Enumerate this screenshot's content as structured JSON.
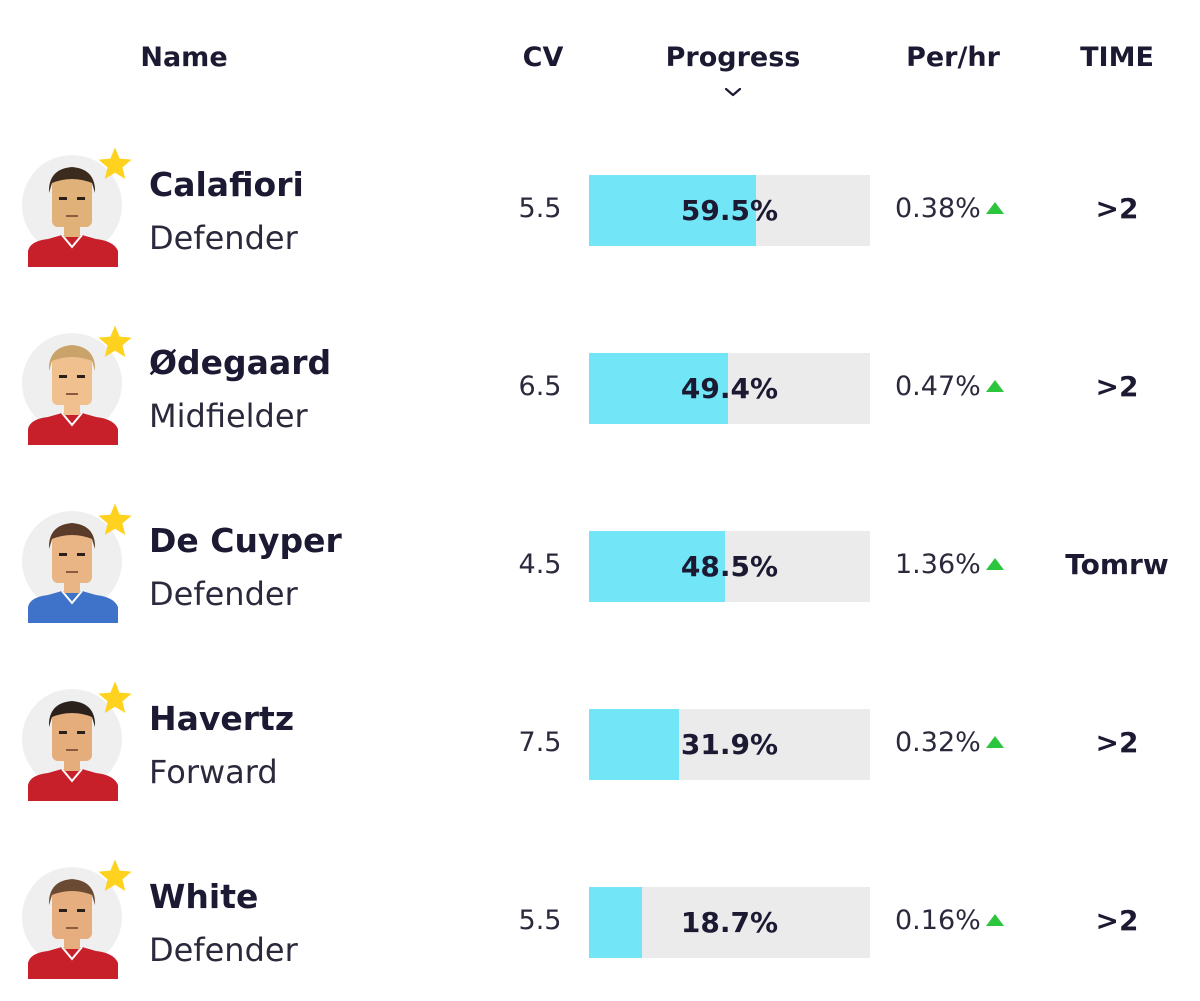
{
  "header": {
    "name": "Name",
    "cv": "CV",
    "progress": "Progress",
    "per_hr": "Per/hr",
    "time": "TIME"
  },
  "colors": {
    "progress_fill": "#72e6f6",
    "progress_track": "#ebebeb",
    "up_arrow": "#2cc63e",
    "star": "#ffd21f",
    "shirt_red": "#c8202a",
    "shirt_blue": "#3f72c9"
  },
  "players": [
    {
      "name": "Calafiori",
      "position": "Defender",
      "cv": "5.5",
      "progress": "59.5%",
      "progress_value": 59.5,
      "per_hr": "0.38%",
      "trend": "up",
      "time": ">2",
      "starred": true,
      "shirt": "red"
    },
    {
      "name": "Ødegaard",
      "position": "Midfielder",
      "cv": "6.5",
      "progress": "49.4%",
      "progress_value": 49.4,
      "per_hr": "0.47%",
      "trend": "up",
      "time": ">2",
      "starred": true,
      "shirt": "red"
    },
    {
      "name": "De Cuyper",
      "position": "Defender",
      "cv": "4.5",
      "progress": "48.5%",
      "progress_value": 48.5,
      "per_hr": "1.36%",
      "trend": "up",
      "time": "Tomrw",
      "starred": true,
      "shirt": "blue"
    },
    {
      "name": "Havertz",
      "position": "Forward",
      "cv": "7.5",
      "progress": "31.9%",
      "progress_value": 31.9,
      "per_hr": "0.32%",
      "trend": "up",
      "time": ">2",
      "starred": true,
      "shirt": "red"
    },
    {
      "name": "White",
      "position": "Defender",
      "cv": "5.5",
      "progress": "18.7%",
      "progress_value": 18.7,
      "per_hr": "0.16%",
      "trend": "up",
      "time": ">2",
      "starred": true,
      "shirt": "red"
    }
  ]
}
